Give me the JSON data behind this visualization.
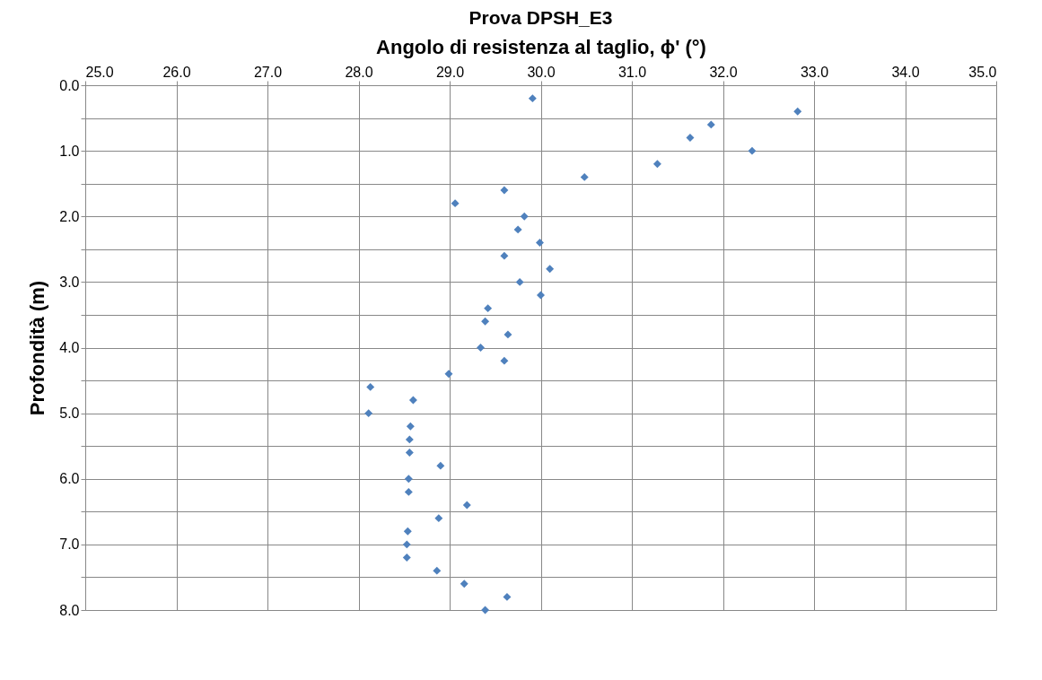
{
  "chart_data": {
    "type": "scatter",
    "title": "Prova DPSH_E3",
    "xlabel": "Angolo di resistenza al taglio, ϕ' (°)",
    "ylabel": "Profondità (m)",
    "x": [
      29.91,
      32.82,
      31.87,
      31.64,
      32.32,
      31.28,
      30.48,
      29.6,
      29.06,
      29.82,
      29.75,
      29.99,
      29.6,
      30.1,
      29.77,
      30.0,
      29.42,
      29.39,
      29.64,
      29.34,
      29.6,
      28.99,
      28.13,
      28.6,
      28.11,
      28.57,
      28.56,
      28.56,
      28.9,
      28.55,
      28.55,
      29.19,
      28.88,
      28.54,
      28.53,
      28.53,
      28.86,
      29.16,
      29.63,
      29.39
    ],
    "values": [
      0.2,
      0.4,
      0.6,
      0.8,
      1.0,
      1.2,
      1.4,
      1.6,
      1.8,
      2.0,
      2.2,
      2.4,
      2.6,
      2.8,
      3.0,
      3.2,
      3.4,
      3.6,
      3.8,
      4.0,
      4.2,
      4.4,
      4.6,
      4.8,
      5.0,
      5.2,
      5.4,
      5.6,
      5.8,
      6.0,
      6.2,
      6.4,
      6.6,
      6.8,
      7.0,
      7.2,
      7.4,
      7.6,
      7.8,
      8.0
    ],
    "color": "#4f81bd",
    "marker": "diamond",
    "grid": true,
    "xlim": [
      25,
      35
    ],
    "xticks": [
      {
        "value": 25,
        "label": "25.0"
      },
      {
        "value": 26,
        "label": "26.0"
      },
      {
        "value": 27,
        "label": "27.0"
      },
      {
        "value": 28,
        "label": "28.0"
      },
      {
        "value": 29,
        "label": "29.0"
      },
      {
        "value": 30,
        "label": "30.0"
      },
      {
        "value": 31,
        "label": "31.0"
      },
      {
        "value": 32,
        "label": "32.0"
      },
      {
        "value": 33,
        "label": "33.0"
      },
      {
        "value": 34,
        "label": "34.0"
      },
      {
        "value": 35,
        "label": "35.0"
      }
    ],
    "ylim": [
      8,
      0
    ],
    "yticks": [
      {
        "value": 0,
        "label": "0.0"
      },
      {
        "value": 0.5,
        "label": null
      },
      {
        "value": 1,
        "label": "1.0"
      },
      {
        "value": 1.5,
        "label": null
      },
      {
        "value": 2,
        "label": "2.0"
      },
      {
        "value": 2.5,
        "label": null
      },
      {
        "value": 3,
        "label": "3.0"
      },
      {
        "value": 3.5,
        "label": null
      },
      {
        "value": 4,
        "label": "4.0"
      },
      {
        "value": 4.5,
        "label": null
      },
      {
        "value": 5,
        "label": "5.0"
      },
      {
        "value": 5.5,
        "label": null
      },
      {
        "value": 6,
        "label": "6.0"
      },
      {
        "value": 6.5,
        "label": null
      },
      {
        "value": 7,
        "label": "7.0"
      },
      {
        "value": 7.5,
        "label": null
      },
      {
        "value": 8,
        "label": "8.0"
      }
    ]
  }
}
